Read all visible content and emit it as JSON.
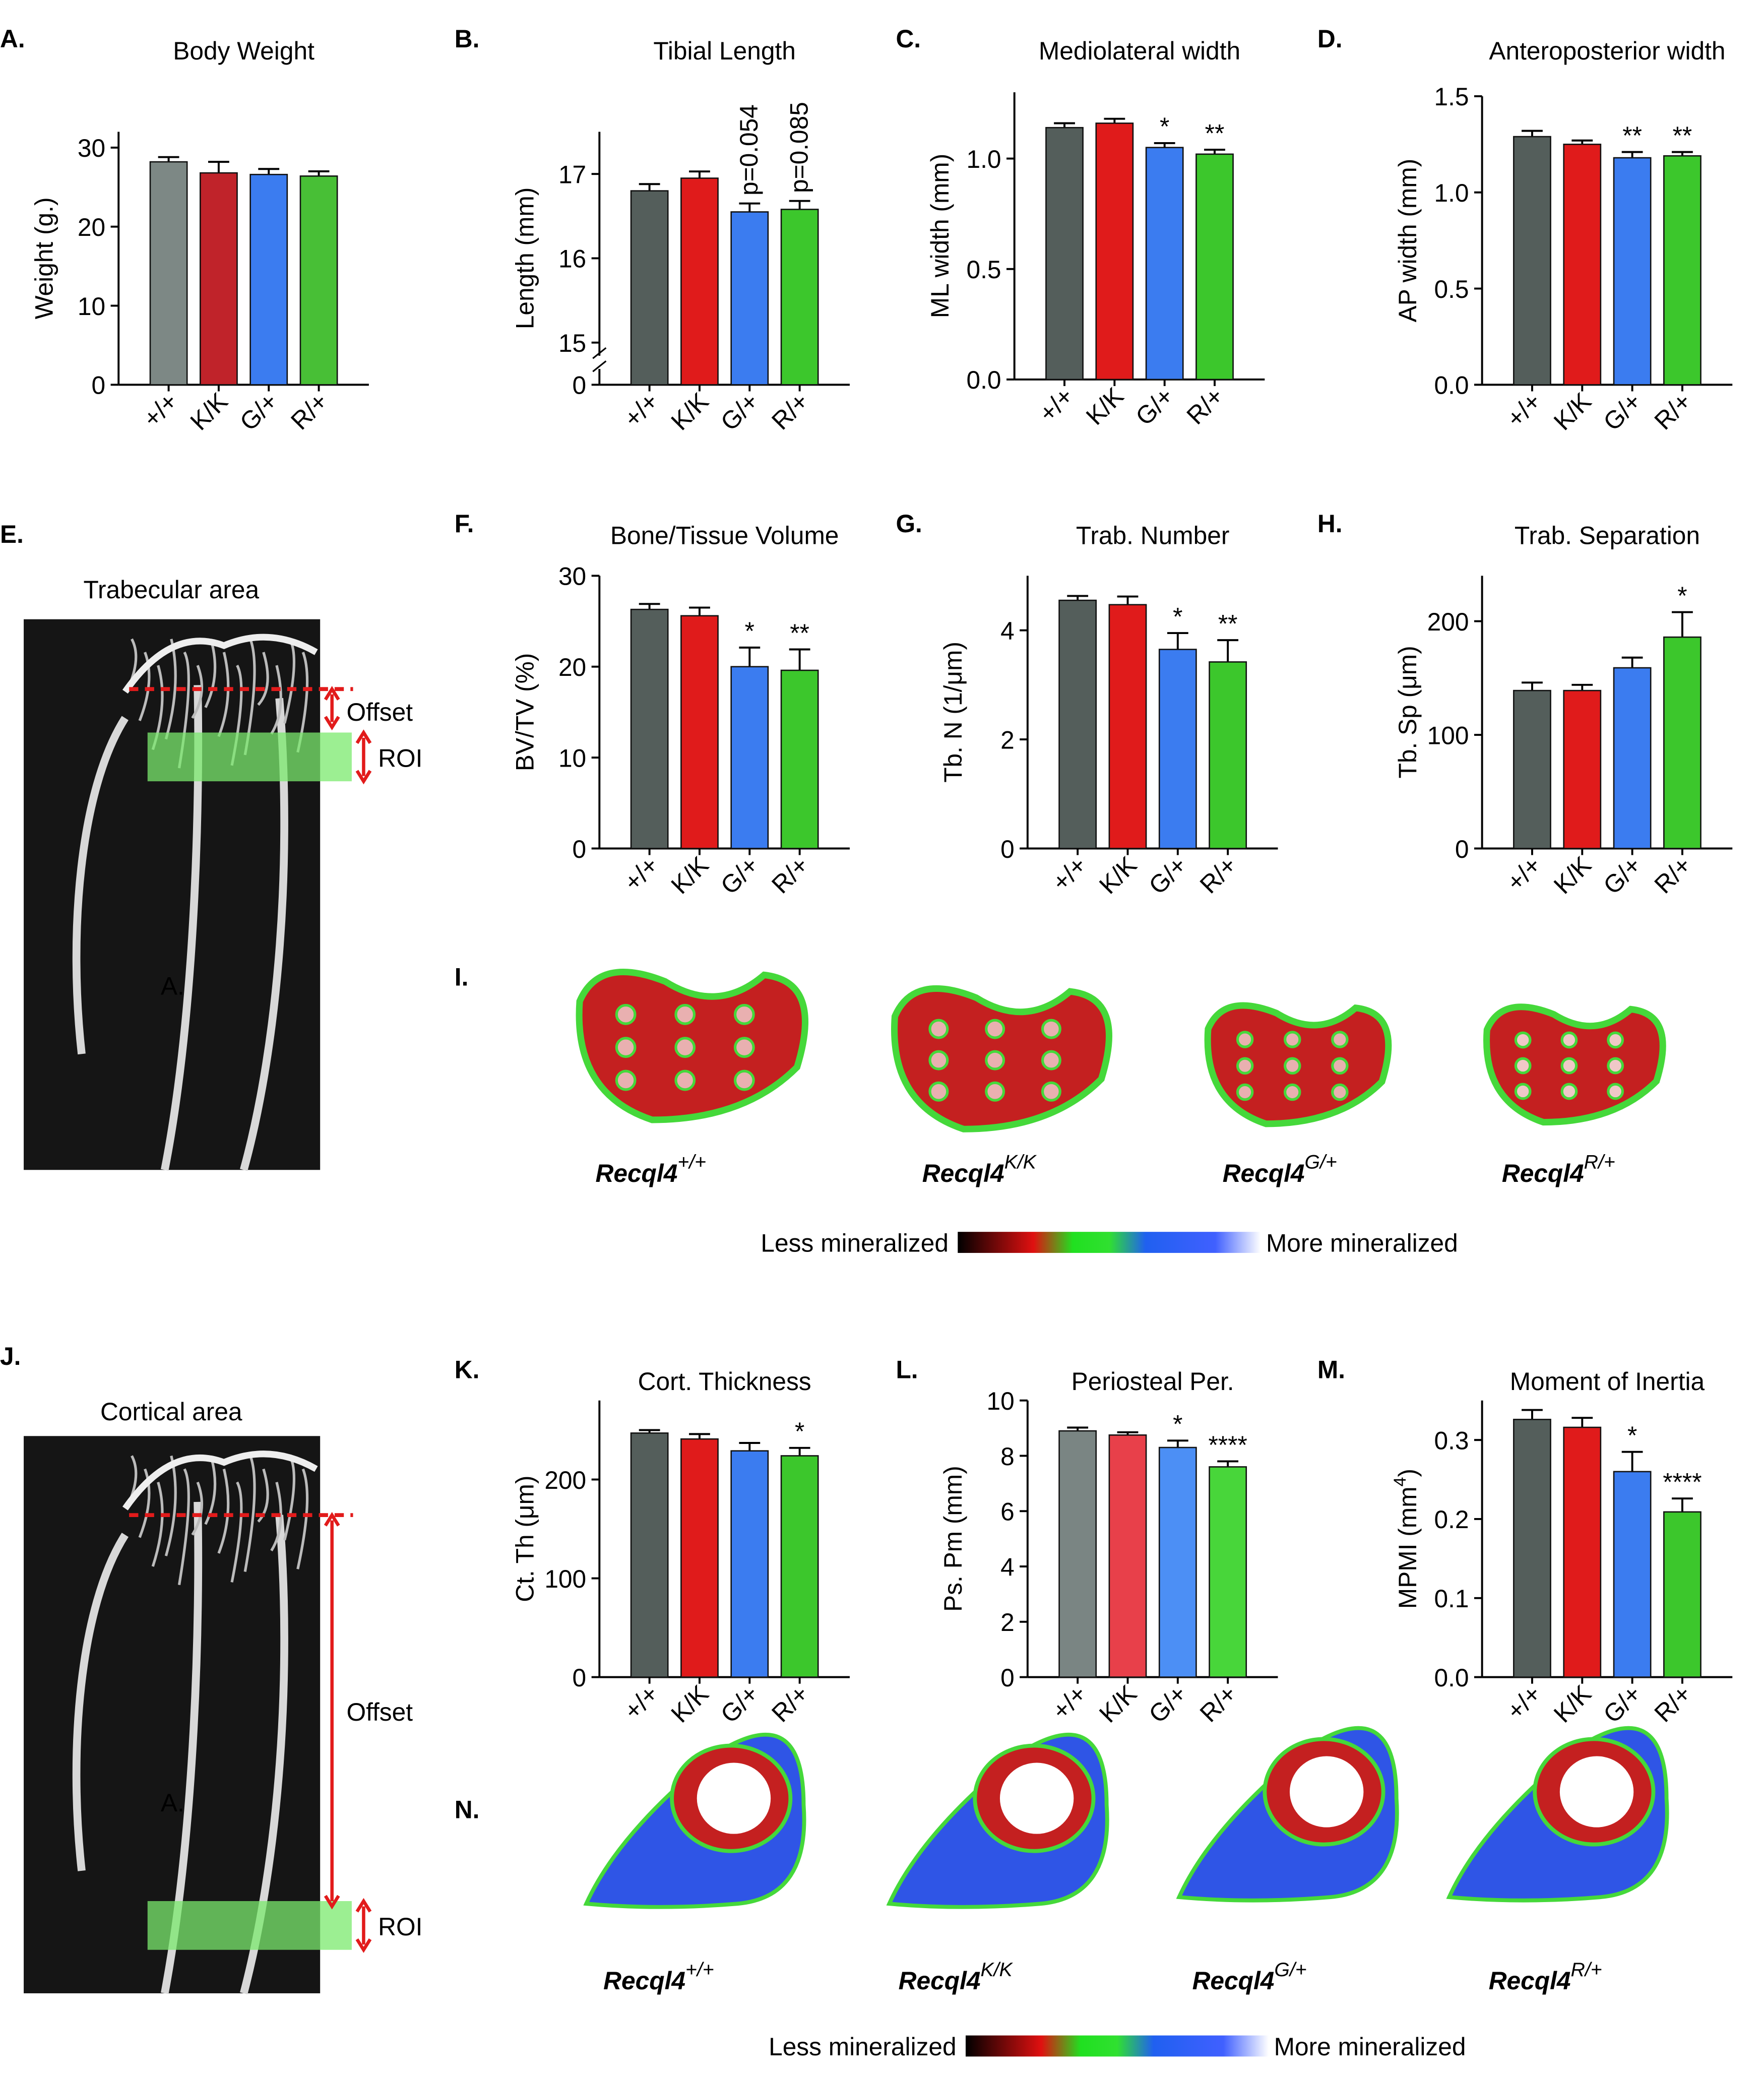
{
  "chart_data": [
    {
      "type": "bar",
      "panel": "A.",
      "title": "Body Weight",
      "ylabel": "Weight (g.)",
      "categories": [
        "+/+",
        "K/K",
        "G/+",
        "R/+"
      ],
      "values": [
        28.2,
        26.8,
        26.6,
        26.4
      ],
      "errors": [
        0.6,
        1.4,
        0.7,
        0.6
      ],
      "colors": [
        "#7d8885",
        "#c0232a",
        "#3b7cf0",
        "#48bf36"
      ],
      "ylim": [
        0,
        32
      ],
      "yticks": [
        0,
        10,
        20,
        30
      ],
      "annotations": [
        null,
        null,
        null,
        null
      ]
    },
    {
      "type": "bar",
      "panel": "B.",
      "title": "Tibial Length",
      "ylabel": "Length (mm)",
      "categories": [
        "+/+",
        "K/K",
        "G/+",
        "R/+"
      ],
      "values": [
        16.8,
        16.95,
        16.55,
        16.58
      ],
      "errors": [
        0.08,
        0.08,
        0.1,
        0.1
      ],
      "colors": [
        "#545e5b",
        "#e01b1b",
        "#3b7cf0",
        "#3cc72c"
      ],
      "ylim": [
        14.5,
        17.5
      ],
      "axis_break": true,
      "yticks": [
        0,
        15,
        16,
        17
      ],
      "annotations": [
        null,
        null,
        "p=0.054",
        "p=0.085"
      ],
      "annotation_rotated": true
    },
    {
      "type": "bar",
      "panel": "C.",
      "title": "Mediolateral width",
      "ylabel": "ML width (mm)",
      "categories": [
        "+/+",
        "K/K",
        "G/+",
        "R/+"
      ],
      "values": [
        1.14,
        1.16,
        1.05,
        1.02
      ],
      "errors": [
        0.02,
        0.02,
        0.02,
        0.02
      ],
      "colors": [
        "#545e5b",
        "#e01b1b",
        "#3b7cf0",
        "#3cc72c"
      ],
      "ylim": [
        0,
        1.3
      ],
      "yticks": [
        {
          "value": 0,
          "label": "0.0"
        },
        0.5,
        {
          "value": 1,
          "label": "1.0"
        }
      ],
      "annotations": [
        null,
        null,
        "*",
        "**"
      ]
    },
    {
      "type": "bar",
      "panel": "D.",
      "title": "Anteroposterior width",
      "ylabel": "AP width (mm)",
      "categories": [
        "+/+",
        "K/K",
        "G/+",
        "R/+"
      ],
      "values": [
        1.29,
        1.25,
        1.18,
        1.19
      ],
      "errors": [
        0.03,
        0.02,
        0.03,
        0.02
      ],
      "colors": [
        "#545e5b",
        "#e01b1b",
        "#3b7cf0",
        "#3cc72c"
      ],
      "ylim": [
        0,
        1.5
      ],
      "yticks": [
        {
          "value": 0,
          "label": "0.0"
        },
        0.5,
        {
          "value": 1,
          "label": "1.0"
        },
        1.5
      ],
      "annotations": [
        null,
        null,
        "**",
        "**"
      ]
    },
    {
      "type": "bar",
      "panel": "F.",
      "title": "Bone/Tissue Volume",
      "ylabel": "BV/TV (%)",
      "categories": [
        "+/+",
        "K/K",
        "G/+",
        "R/+"
      ],
      "values": [
        26.3,
        25.6,
        20.0,
        19.6
      ],
      "errors": [
        0.6,
        0.9,
        2.1,
        2.3
      ],
      "colors": [
        "#545e5b",
        "#e01b1b",
        "#3b7cf0",
        "#3cc72c"
      ],
      "ylim": [
        0,
        30
      ],
      "yticks": [
        0,
        10,
        20,
        30
      ],
      "annotations": [
        null,
        null,
        "*",
        "**"
      ]
    },
    {
      "type": "bar",
      "panel": "G.",
      "title": "Trab. Number",
      "ylabel": "Tb. N  (1/μm)",
      "categories": [
        "+/+",
        "K/K",
        "G/+",
        "R/+"
      ],
      "values": [
        4.55,
        4.47,
        3.65,
        3.42
      ],
      "errors": [
        0.08,
        0.15,
        0.3,
        0.4
      ],
      "colors": [
        "#545e5b",
        "#e01b1b",
        "#3b7cf0",
        "#3cc72c"
      ],
      "ylim": [
        0,
        5
      ],
      "yticks": [
        0,
        2,
        4
      ],
      "annotations": [
        null,
        null,
        "*",
        "**"
      ]
    },
    {
      "type": "bar",
      "panel": "H.",
      "title": "Trab. Separation",
      "ylabel": "Tb. Sp  (μm)",
      "categories": [
        "+/+",
        "K/K",
        "G/+",
        "R/+"
      ],
      "values": [
        139,
        139,
        159,
        186
      ],
      "errors": [
        7,
        5,
        9,
        22
      ],
      "colors": [
        "#545e5b",
        "#e01b1b",
        "#3b7cf0",
        "#3cc72c"
      ],
      "ylim": [
        0,
        240
      ],
      "yticks": [
        0,
        100,
        200
      ],
      "annotations": [
        null,
        null,
        null,
        "*"
      ]
    },
    {
      "type": "bar",
      "panel": "K.",
      "title": "Cort. Thickness",
      "ylabel": "Ct. Th  (μm)",
      "categories": [
        "+/+",
        "K/K",
        "G/+",
        "R/+"
      ],
      "values": [
        247,
        241,
        229,
        224
      ],
      "errors": [
        3,
        5,
        8,
        8
      ],
      "colors": [
        "#545e5b",
        "#e01b1b",
        "#3b7cf0",
        "#3cc72c"
      ],
      "ylim": [
        0,
        280
      ],
      "yticks": [
        0,
        100,
        200
      ],
      "annotations": [
        null,
        null,
        null,
        "*"
      ]
    },
    {
      "type": "bar",
      "panel": "L.",
      "title": "Periosteal Per.",
      "ylabel": "Ps. Pm (mm)",
      "categories": [
        "+/+",
        "K/K",
        "G/+",
        "R/+"
      ],
      "values": [
        8.9,
        8.75,
        8.3,
        7.6
      ],
      "errors": [
        0.12,
        0.1,
        0.25,
        0.2
      ],
      "colors": [
        "#7a8583",
        "#e8404a",
        "#4c8ff5",
        "#48d63a"
      ],
      "ylim": [
        0,
        10
      ],
      "yticks": [
        0,
        2,
        4,
        6,
        8,
        10
      ],
      "annotations": [
        null,
        null,
        "*",
        "****"
      ]
    },
    {
      "type": "bar",
      "panel": "M.",
      "title": "Moment of Inertia",
      "ylabel": "MPMI  (mm",
      "ylabel_sup": "4",
      "ylabel_end": ")",
      "categories": [
        "+/+",
        "K/K",
        "G/+",
        "R/+"
      ],
      "values": [
        0.326,
        0.316,
        0.26,
        0.209
      ],
      "errors": [
        0.012,
        0.012,
        0.025,
        0.017
      ],
      "colors": [
        "#545e5b",
        "#e01b1b",
        "#3b7cf0",
        "#3cc72c"
      ],
      "ylim": [
        0,
        0.35
      ],
      "yticks": [
        {
          "value": 0,
          "label": "0.0"
        },
        0.1,
        0.2,
        0.3
      ],
      "annotations": [
        null,
        null,
        "*",
        "****"
      ]
    }
  ],
  "figure": {
    "panel_E": {
      "label": "E.",
      "title": "Trabecular area",
      "offset": "Offset",
      "roi": "ROI",
      "marker": "A."
    },
    "panel_I": {
      "label": "I.",
      "samples": [
        {
          "name": "Recql4",
          "genotype": "+/+"
        },
        {
          "name": "Recql4",
          "genotype": "K/K"
        },
        {
          "name": "Recql4",
          "genotype": "G/+"
        },
        {
          "name": "Recql4",
          "genotype": "R/+"
        }
      ],
      "colorbar": {
        "low": "Less mineralized",
        "high": "More mineralized"
      }
    },
    "panel_J": {
      "label": "J.",
      "title": "Cortical area",
      "offset": "Offset",
      "roi": "ROI",
      "marker": "A."
    },
    "panel_N": {
      "label": "N.",
      "samples": [
        {
          "name": "Recql4",
          "genotype": "+/+"
        },
        {
          "name": "Recql4",
          "genotype": "K/K"
        },
        {
          "name": "Recql4",
          "genotype": "G/+"
        },
        {
          "name": "Recql4",
          "genotype": "R/+"
        }
      ],
      "colorbar": {
        "low": "Less mineralized",
        "high": "More mineralized"
      }
    }
  }
}
